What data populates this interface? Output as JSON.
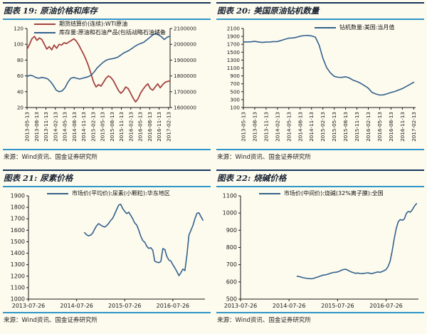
{
  "page": {
    "background": "#FDFBEE",
    "rule_color": "#2E96C8",
    "header_border_color": "#16355C"
  },
  "panels": [
    {
      "title": "图表 19: 原油价格和库存",
      "source": "来源：Wind资讯、国金证券研究所"
    },
    {
      "title": "图表 20: 美国原油钻机数量",
      "source": "来源：Wind资讯、国金证券研究所"
    },
    {
      "title": "图表 21: 尿素价格",
      "source": "来源：Wind资讯、国金证券研究所"
    },
    {
      "title": "图表 22: 烧碱价格",
      "source": "来源：Wind资讯、国金证券研究所"
    }
  ],
  "chart_data": [
    {
      "type": "line",
      "title": "原油价格和库存",
      "x_min": 0,
      "x_max": 45.5,
      "x_tick_positions": [
        0,
        3,
        6,
        9,
        12,
        15,
        18,
        21,
        24,
        27,
        30,
        33,
        36,
        39,
        42,
        45
      ],
      "x_tick_labels": [
        "2013-05-13",
        "2013-08-13",
        "2013-11-13",
        "2014-02-13",
        "2014-05-13",
        "2014-08-13",
        "2014-11-13",
        "2015-02-13",
        "2015-05-13",
        "2015-08-13",
        "2015-11-13",
        "2016-02-13",
        "2016-05-13",
        "2016-08-13",
        "2016-11-13",
        "2017-02-13"
      ],
      "left_axis": {
        "min": 20,
        "max": 120,
        "step": 20
      },
      "right_axis": {
        "min": 1600000,
        "max": 2100000,
        "step": 100000
      },
      "series": [
        {
          "name": "期货结算价(连续):WTI原油",
          "color": "#A5433F",
          "axis": "left",
          "width": 1.8,
          "x_start": 0,
          "x_end": 45.5,
          "values": [
            94,
            100,
            107,
            110,
            105,
            108,
            106,
            100,
            94,
            97,
            93,
            99,
            95,
            100,
            99,
            102,
            101,
            103,
            105,
            107,
            104,
            99,
            93,
            87,
            80,
            72,
            62,
            52,
            46,
            49,
            47,
            52,
            57,
            60,
            58,
            54,
            48,
            42,
            38,
            41,
            46,
            44,
            38,
            32,
            27,
            31,
            38,
            43,
            47,
            50,
            44,
            42,
            46,
            50,
            45,
            49,
            52,
            53,
            54
          ]
        },
        {
          "name": "库存量:原油和石油产品(包括战略石油储备",
          "color": "#33618D",
          "axis": "right",
          "width": 1.6,
          "x_start": 0,
          "x_end": 45.5,
          "values": [
            1795000,
            1805000,
            1800000,
            1790000,
            1785000,
            1790000,
            1788000,
            1782000,
            1765000,
            1740000,
            1710000,
            1700000,
            1705000,
            1725000,
            1760000,
            1785000,
            1790000,
            1785000,
            1780000,
            1785000,
            1790000,
            1795000,
            1805000,
            1825000,
            1850000,
            1868000,
            1885000,
            1898000,
            1905000,
            1908000,
            1912000,
            1918000,
            1930000,
            1944000,
            1953000,
            1962000,
            1975000,
            1988000,
            1998000,
            2006000,
            2013000,
            2028000,
            2043000,
            2058000,
            2068000,
            2060000,
            2048000,
            2030000,
            2045000,
            2052000
          ]
        }
      ]
    },
    {
      "type": "line",
      "title": "美国原油钻机数量",
      "x_min": 0,
      "x_max": 45.5,
      "x_tick_positions": [
        0,
        3,
        6,
        9,
        12,
        15,
        18,
        21,
        24,
        27,
        30,
        33,
        36,
        39,
        42,
        45
      ],
      "x_tick_labels": [
        "2013-05-13",
        "2013-08-13",
        "2013-11-13",
        "2014-02-13",
        "2014-05-13",
        "2014-08-13",
        "2014-11-13",
        "2015-02-13",
        "2015-05-13",
        "2015-08-13",
        "2015-11-13",
        "2016-02-13",
        "2016-05-13",
        "2016-08-13",
        "2016-11-13",
        "2017-02-13"
      ],
      "left_axis": {
        "min": 100,
        "max": 2100,
        "step": 200
      },
      "series": [
        {
          "name": "钻机数量:美国:当月值",
          "color": "#33618D",
          "axis": "left",
          "width": 1.6,
          "x_start": 0,
          "x_end": 45,
          "values": [
            1762,
            1760,
            1763,
            1774,
            1760,
            1746,
            1755,
            1760,
            1769,
            1771,
            1798,
            1828,
            1855,
            1861,
            1876,
            1905,
            1920,
            1925,
            1912,
            1882,
            1683,
            1348,
            1110,
            976,
            889,
            866,
            863,
            879,
            848,
            792,
            757,
            712,
            654,
            590,
            482,
            442,
            415,
            421,
            449,
            481,
            506,
            544,
            580,
            634,
            683,
            740
          ]
        }
      ]
    },
    {
      "type": "line",
      "title": "尿素价格",
      "x_min": 0,
      "x_max": 44,
      "x_tick_positions": [
        0,
        12,
        24,
        36
      ],
      "x_tick_labels": [
        "2013-07-26",
        "2014-07-26",
        "2015-07-26",
        "2016-07-26"
      ],
      "left_axis": {
        "min": 1000,
        "max": 1900,
        "step": 100
      },
      "series": [
        {
          "name": "市场价(平均价):尿素(小颗粒):华东地区",
          "color": "#33618D",
          "axis": "left",
          "width": 1.6,
          "x_start": 14,
          "x_end": 43.5,
          "values": [
            1580,
            1560,
            1552,
            1558,
            1575,
            1610,
            1640,
            1658,
            1645,
            1635,
            1628,
            1640,
            1660,
            1685,
            1705,
            1742,
            1782,
            1820,
            1826,
            1788,
            1765,
            1745,
            1758,
            1730,
            1700,
            1662,
            1645,
            1600,
            1548,
            1510,
            1495,
            1460,
            1442,
            1448,
            1425,
            1330,
            1322,
            1318,
            1328,
            1440,
            1432,
            1372,
            1340,
            1332,
            1300,
            1272,
            1240,
            1205,
            1230,
            1262,
            1248,
            1380,
            1558,
            1600,
            1642,
            1700,
            1748,
            1752,
            1718,
            1688
          ]
        }
      ]
    },
    {
      "type": "line",
      "title": "烧碱价格",
      "x_min": 0,
      "x_max": 44,
      "x_tick_positions": [
        0,
        12,
        24,
        36
      ],
      "x_tick_labels": [
        "2013-07-26",
        "2014-07-26",
        "2015-07-26",
        "2016-07-26"
      ],
      "left_axis": {
        "min": 500,
        "max": 1100,
        "step": 100
      },
      "series": [
        {
          "name": "市场价(中间价):烧碱(32%离子膜):全国",
          "color": "#33618D",
          "axis": "left",
          "width": 1.6,
          "x_start": 14,
          "x_end": 43.5,
          "values": [
            632,
            631,
            628,
            624,
            622,
            620,
            619,
            618,
            620,
            624,
            628,
            632,
            636,
            640,
            641,
            644,
            648,
            652,
            655,
            656,
            658,
            662,
            668,
            672,
            674,
            668,
            662,
            657,
            653,
            650,
            652,
            649,
            648,
            650,
            651,
            653,
            650,
            648,
            652,
            655,
            658,
            655,
            660,
            665,
            672,
            690,
            720,
            780,
            850,
            910,
            950,
            962,
            958,
            965,
            998,
            1010,
            1005,
            1020,
            1040,
            1055
          ]
        }
      ]
    }
  ]
}
